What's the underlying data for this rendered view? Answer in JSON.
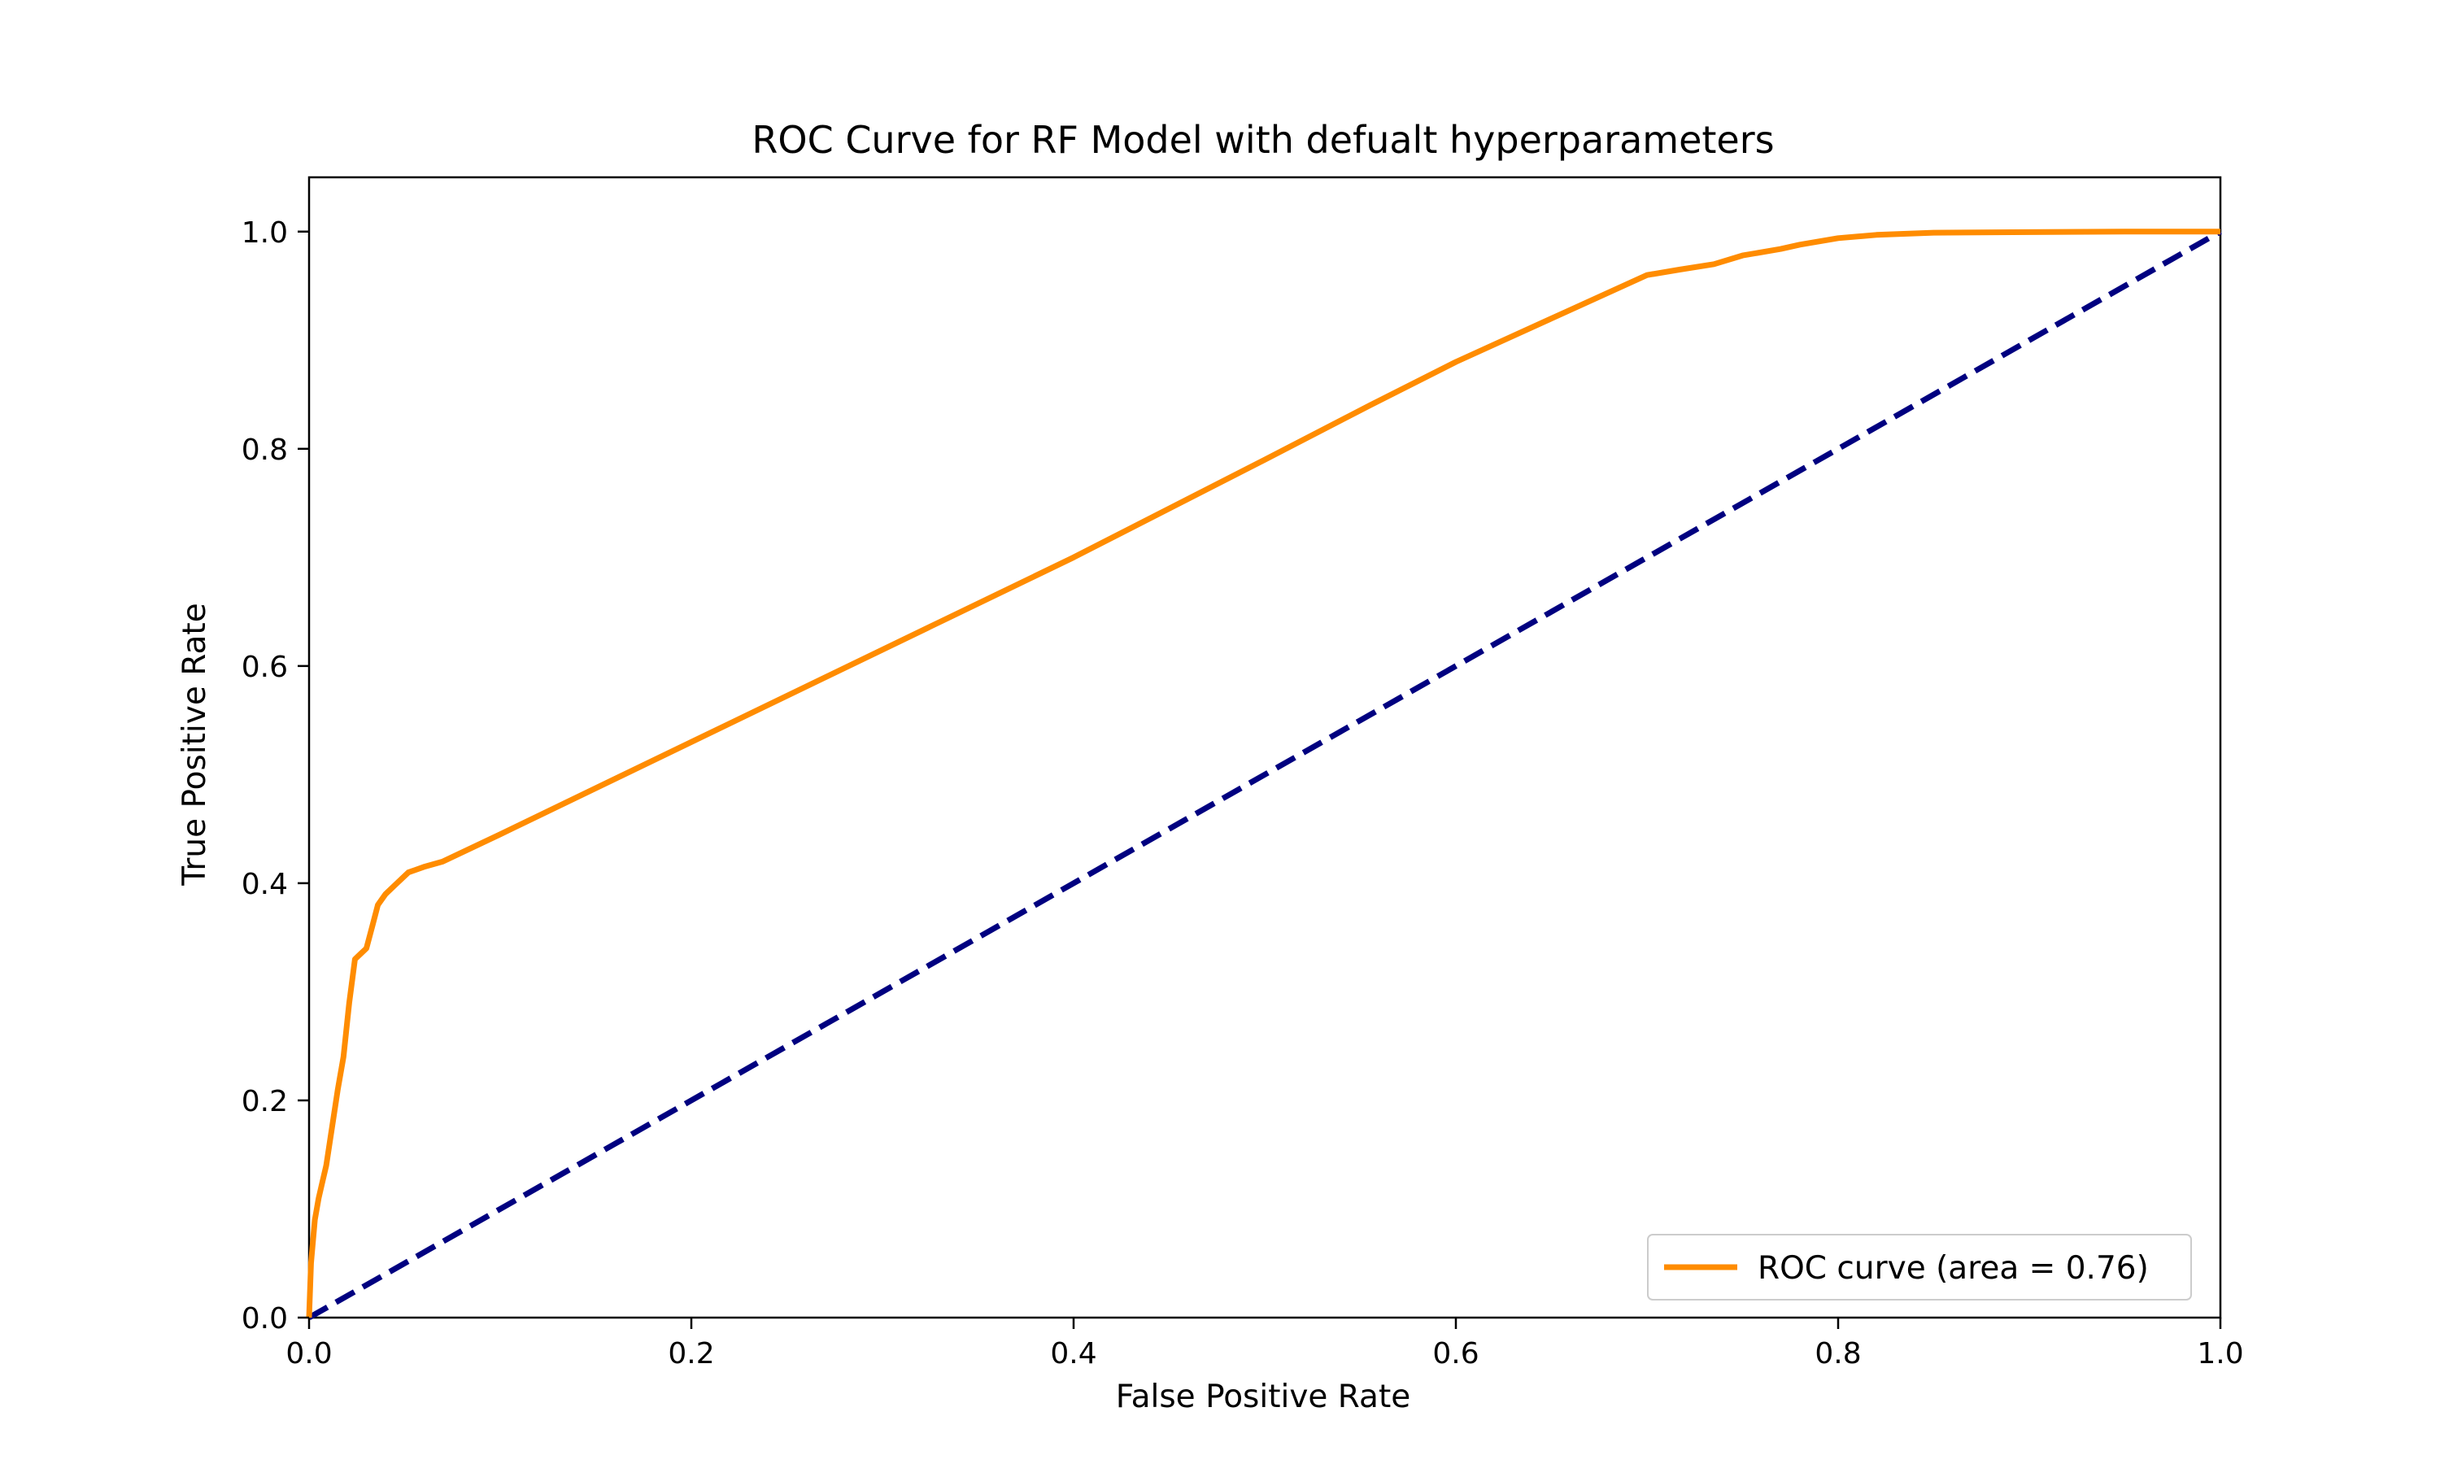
{
  "chart_data": {
    "type": "line",
    "title": "ROC Curve for RF Model with defualt hyperparameters",
    "xlabel": "False Positive Rate",
    "ylabel": "True Positive Rate",
    "xlim": [
      0.0,
      1.0
    ],
    "ylim": [
      0.0,
      1.05
    ],
    "grid": false,
    "legend_position": "lower-right",
    "x_ticks": [
      "0.0",
      "0.2",
      "0.4",
      "0.6",
      "0.8",
      "1.0"
    ],
    "y_ticks": [
      "0.0",
      "0.2",
      "0.4",
      "0.6",
      "0.8",
      "1.0"
    ],
    "series": [
      {
        "name": "ROC curve (area = 0.76)",
        "color": "#ff8c00",
        "style": "solid",
        "x": [
          0.0,
          0.001,
          0.003,
          0.005,
          0.007,
          0.009,
          0.012,
          0.015,
          0.018,
          0.021,
          0.024,
          0.027,
          0.03,
          0.033,
          0.036,
          0.04,
          0.046,
          0.052,
          0.06,
          0.07,
          0.1,
          0.2,
          0.3,
          0.4,
          0.5,
          0.555,
          0.6,
          0.65,
          0.7,
          0.717,
          0.735,
          0.75,
          0.77,
          0.78,
          0.8,
          0.82,
          0.85,
          0.9,
          0.95,
          1.0
        ],
        "y": [
          0.0,
          0.05,
          0.09,
          0.11,
          0.125,
          0.14,
          0.175,
          0.21,
          0.24,
          0.29,
          0.33,
          0.335,
          0.34,
          0.36,
          0.38,
          0.39,
          0.4,
          0.41,
          0.415,
          0.42,
          0.445,
          0.53,
          0.615,
          0.7,
          0.79,
          0.84,
          0.88,
          0.92,
          0.96,
          0.965,
          0.97,
          0.978,
          0.984,
          0.988,
          0.994,
          0.997,
          0.999,
          0.9995,
          1.0,
          1.0
        ]
      },
      {
        "name": "",
        "color": "#000080",
        "style": "dashed",
        "x": [
          0.0,
          1.0
        ],
        "y": [
          0.0,
          1.0
        ]
      }
    ]
  }
}
